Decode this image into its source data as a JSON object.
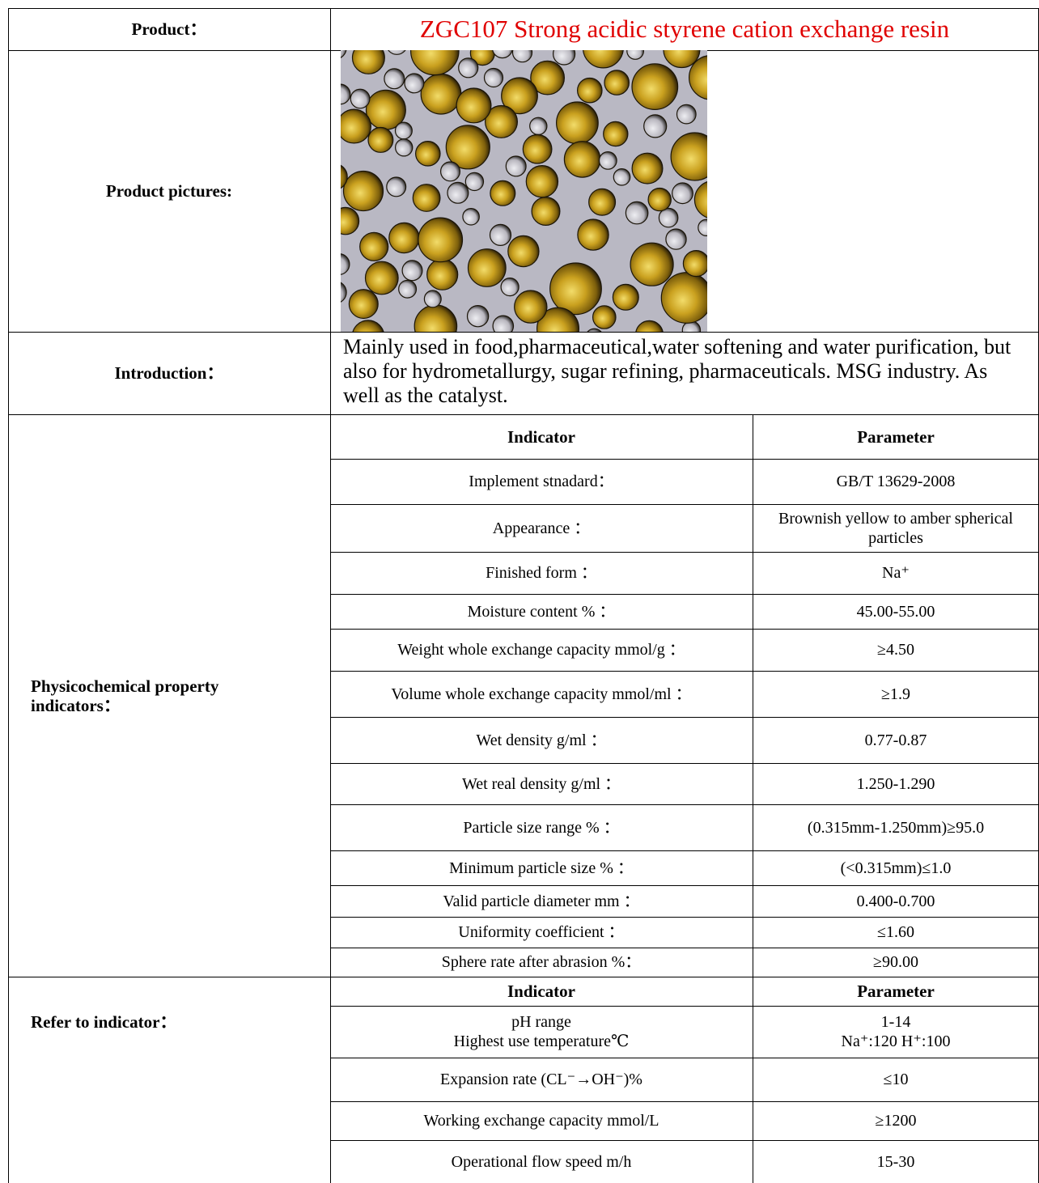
{
  "product": {
    "label": "Product：",
    "value": "ZGC107 Strong acidic styrene cation exchange resin"
  },
  "pictures": {
    "label": "Product pictures:"
  },
  "introduction": {
    "label": "Introduction：",
    "text": "Mainly used in food,pharmaceutical,water  softening and water purification, but also for hydrometallurgy, sugar refining, pharmaceuticals. MSG industry. As well as the catalyst."
  },
  "physico": {
    "label": "Physicochemical property indicators：",
    "headers": [
      "Indicator",
      "Parameter"
    ],
    "rows": [
      [
        "Implement stnadard：",
        "GB/T 13629-2008"
      ],
      [
        "Appearance  ：",
        "Brownish yellow to amber spherical particles"
      ],
      [
        "Finished form  ：",
        "Na⁺"
      ],
      [
        "Moisture content %  ：",
        "45.00-55.00"
      ],
      [
        "Weight whole exchange capacity mmol/g  ：",
        "≥4.50"
      ],
      [
        "Volume whole exchange capacity mmol/ml  ：",
        "≥1.9"
      ],
      [
        "Wet density g/ml  ：",
        "0.77-0.87"
      ],
      [
        "Wet real density g/ml  ：",
        "1.250-1.290"
      ],
      [
        "Particle size range %  ：",
        "(0.315mm-1.250mm)≥95.0"
      ],
      [
        "Minimum particle size %  ：",
        "(<0.315mm)≤1.0"
      ],
      [
        "Valid particle diameter mm  ：",
        "0.400-0.700"
      ],
      [
        "Uniformity coefficient  ：",
        "≤1.60"
      ],
      [
        "Sphere rate after abrasion %：",
        "≥90.00"
      ]
    ]
  },
  "refer": {
    "label": "Refer to indicator：",
    "headers": [
      "Indicator",
      "Parameter"
    ],
    "rows": [
      [
        "pH range\nHighest use temperature℃",
        "1-14\nNa⁺:120   H⁺:100"
      ],
      [
        "Expansion rate (CL⁻→OH⁻)%",
        "≤10"
      ],
      [
        "Working exchange capacity mmol/L",
        "≥1200"
      ],
      [
        "Operational flow speed m/h",
        "15-30"
      ]
    ]
  },
  "colors": {
    "title": "#e00000",
    "beads": "#c9a225",
    "background": "#bdbcc6"
  }
}
